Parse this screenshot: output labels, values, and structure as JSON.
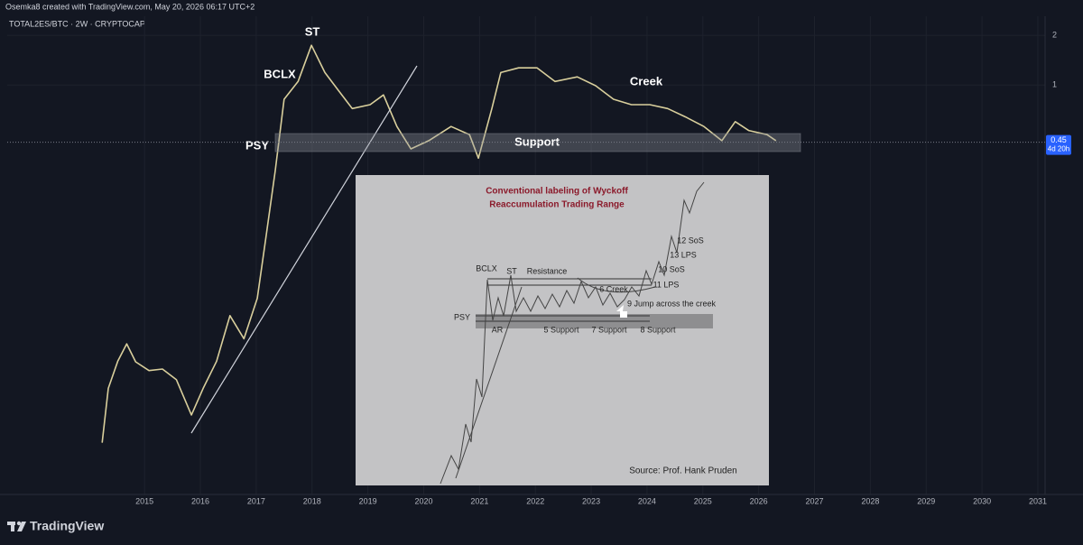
{
  "header": {
    "author_line": "Osemka8 created with TradingView.com, May 20, 2026 06:17 UTC+2",
    "symbol": "TOTAL2ES/BTC · 2W · CRYPTOCAP"
  },
  "chart_data": {
    "type": "line",
    "yscale": "log",
    "color": "#d9cf9c",
    "x": [
      2014.24,
      2014.35,
      2014.52,
      2014.68,
      2014.84,
      2015.08,
      2015.32,
      2015.57,
      2015.84,
      2016.05,
      2016.29,
      2016.53,
      2016.78,
      2017.02,
      2017.18,
      2017.34,
      2017.5,
      2017.75,
      2017.99,
      2018.23,
      2018.47,
      2018.72,
      2019.04,
      2019.28,
      2019.52,
      2019.77,
      2020.09,
      2020.49,
      2020.82,
      2020.98,
      2021.22,
      2021.38,
      2021.7,
      2022.03,
      2022.35,
      2022.75,
      2023.08,
      2023.4,
      2023.72,
      2024.05,
      2024.37,
      2024.69,
      2025.02,
      2025.34,
      2025.58,
      2025.82,
      2026.15,
      2026.31
    ],
    "values": [
      0.0068,
      0.0145,
      0.0212,
      0.027,
      0.021,
      0.0186,
      0.019,
      0.0164,
      0.01,
      0.0145,
      0.0212,
      0.04,
      0.029,
      0.051,
      0.123,
      0.3,
      0.82,
      1.05,
      1.74,
      1.19,
      0.93,
      0.72,
      0.76,
      0.87,
      0.56,
      0.41,
      0.46,
      0.56,
      0.5,
      0.36,
      0.72,
      1.19,
      1.27,
      1.27,
      1.05,
      1.12,
      0.99,
      0.82,
      0.76,
      0.76,
      0.72,
      0.64,
      0.56,
      0.46,
      0.6,
      0.53,
      0.5,
      0.46
    ],
    "xlim": [
      2012.54,
      2031.13
    ],
    "ylim": [
      0.0033,
      2.96
    ],
    "xticks": [
      2015,
      2016,
      2017,
      2018,
      2019,
      2020,
      2021,
      2022,
      2023,
      2024,
      2025,
      2026,
      2027,
      2028,
      2029,
      2030,
      2031
    ],
    "yticks": [
      2,
      1
    ],
    "grid": true,
    "last_price": 0.45,
    "countdown": "4d 20h",
    "annotations": [
      "ST",
      "BCLX",
      "PSY",
      "Creek",
      "Support"
    ]
  },
  "inset": {
    "title_lines": [
      "Conventional labeling of Wyckoff",
      "Reaccumulation Trading Range"
    ],
    "labels": [
      "BCLX",
      "ST",
      "Resistance",
      "6 Creek",
      "11 LPS",
      "10 SoS",
      "13 LPS",
      "12 SoS",
      "9 Jump across the creek",
      "PSY",
      "AR",
      "5 Support",
      "7 Support",
      "8 Support"
    ],
    "source": "Source: Prof. Hank Pruden"
  },
  "footer": {
    "brand": "TradingView"
  }
}
